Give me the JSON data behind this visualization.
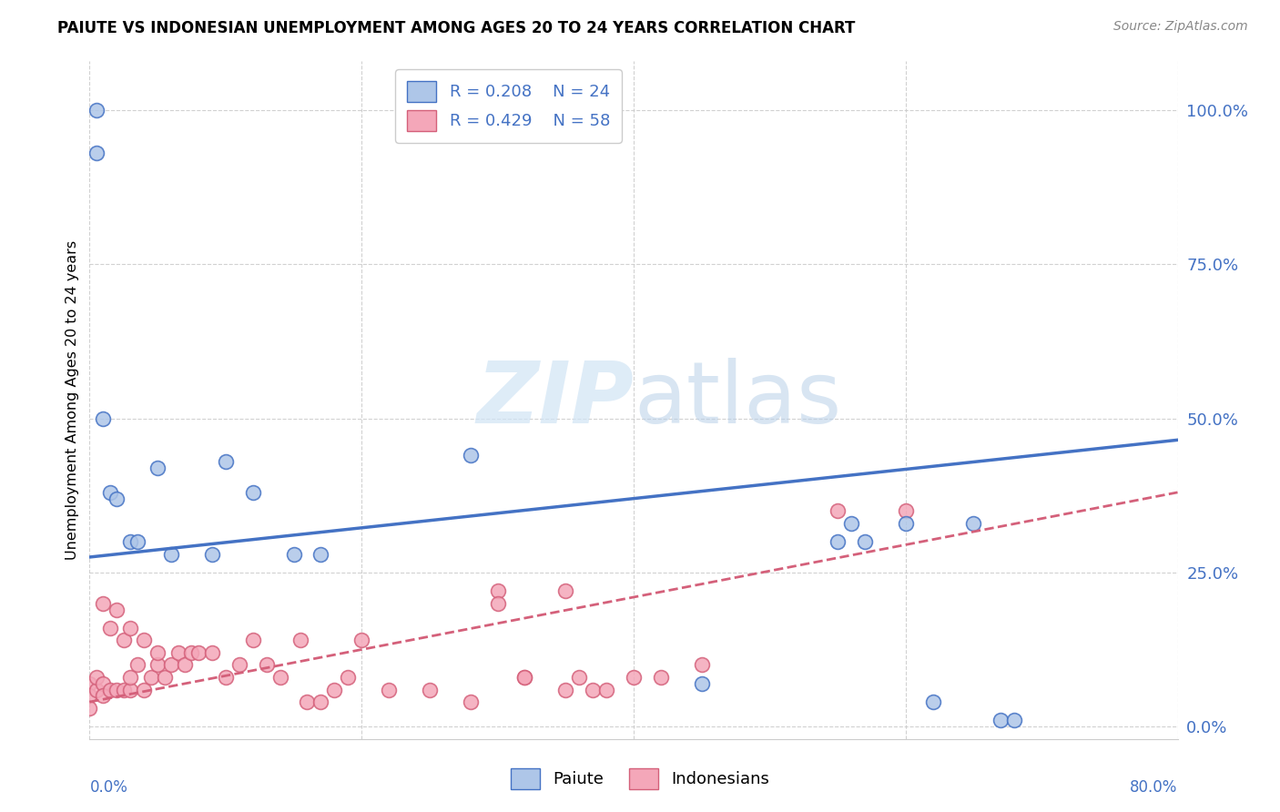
{
  "title": "PAIUTE VS INDONESIAN UNEMPLOYMENT AMONG AGES 20 TO 24 YEARS CORRELATION CHART",
  "source": "Source: ZipAtlas.com",
  "ylabel": "Unemployment Among Ages 20 to 24 years",
  "ytick_labels": [
    "0.0%",
    "25.0%",
    "50.0%",
    "75.0%",
    "100.0%"
  ],
  "ytick_values": [
    0.0,
    0.25,
    0.5,
    0.75,
    1.0
  ],
  "xlim": [
    0.0,
    0.8
  ],
  "ylim": [
    -0.02,
    1.08
  ],
  "paiute_R": 0.208,
  "paiute_N": 24,
  "indonesian_R": 0.429,
  "indonesian_N": 58,
  "paiute_color": "#aec6e8",
  "paiute_line_color": "#4472c4",
  "indonesian_color": "#f4a7b9",
  "indonesian_line_color": "#d4607a",
  "legend_label1": "Paiute",
  "legend_label2": "Indonesians",
  "watermark_zip": "ZIP",
  "watermark_atlas": "atlas",
  "background_color": "#ffffff",
  "grid_color": "#cccccc",
  "paiute_x": [
    0.005,
    0.005,
    0.01,
    0.015,
    0.02,
    0.03,
    0.035,
    0.05,
    0.06,
    0.09,
    0.1,
    0.12,
    0.15,
    0.17,
    0.28,
    0.56,
    0.6,
    0.62,
    0.65,
    0.67,
    0.68,
    0.45,
    0.55,
    0.57
  ],
  "paiute_y": [
    1.0,
    0.93,
    0.5,
    0.38,
    0.37,
    0.3,
    0.3,
    0.42,
    0.28,
    0.28,
    0.43,
    0.38,
    0.28,
    0.28,
    0.44,
    0.33,
    0.33,
    0.04,
    0.33,
    0.01,
    0.01,
    0.07,
    0.3,
    0.3
  ],
  "indonesian_x": [
    0.0,
    0.0,
    0.0,
    0.005,
    0.005,
    0.01,
    0.01,
    0.01,
    0.015,
    0.015,
    0.02,
    0.02,
    0.025,
    0.025,
    0.03,
    0.03,
    0.03,
    0.035,
    0.04,
    0.04,
    0.045,
    0.05,
    0.05,
    0.055,
    0.06,
    0.065,
    0.07,
    0.075,
    0.08,
    0.09,
    0.1,
    0.11,
    0.12,
    0.13,
    0.14,
    0.155,
    0.16,
    0.17,
    0.18,
    0.19,
    0.2,
    0.22,
    0.25,
    0.28,
    0.3,
    0.32,
    0.35,
    0.37,
    0.3,
    0.32,
    0.35,
    0.36,
    0.38,
    0.4,
    0.42,
    0.45,
    0.55,
    0.6
  ],
  "indonesian_y": [
    0.07,
    0.05,
    0.03,
    0.06,
    0.08,
    0.07,
    0.05,
    0.2,
    0.06,
    0.16,
    0.06,
    0.19,
    0.06,
    0.14,
    0.06,
    0.08,
    0.16,
    0.1,
    0.06,
    0.14,
    0.08,
    0.1,
    0.12,
    0.08,
    0.1,
    0.12,
    0.1,
    0.12,
    0.12,
    0.12,
    0.08,
    0.1,
    0.14,
    0.1,
    0.08,
    0.14,
    0.04,
    0.04,
    0.06,
    0.08,
    0.14,
    0.06,
    0.06,
    0.04,
    0.22,
    0.08,
    0.06,
    0.06,
    0.2,
    0.08,
    0.22,
    0.08,
    0.06,
    0.08,
    0.08,
    0.1,
    0.35,
    0.35
  ],
  "paiute_trend_x": [
    0.0,
    0.8
  ],
  "paiute_trend_y": [
    0.275,
    0.465
  ],
  "indo_trend_x": [
    0.0,
    0.8
  ],
  "indo_trend_y": [
    0.04,
    0.38
  ],
  "grid_xticks": [
    0.0,
    0.2,
    0.4,
    0.6,
    0.8
  ]
}
